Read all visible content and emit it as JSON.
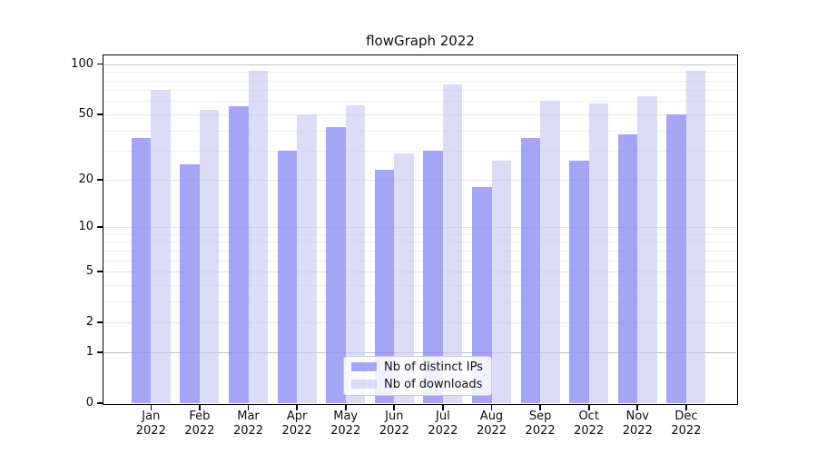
{
  "title": "flowGraph 2022",
  "chart_data": {
    "type": "bar",
    "title": "flowGraph 2022",
    "categories": [
      "Jan 2022",
      "Feb 2022",
      "Mar 2022",
      "Apr 2022",
      "May 2022",
      "Jun 2022",
      "Jul 2022",
      "Aug 2022",
      "Sep 2022",
      "Oct 2022",
      "Nov 2022",
      "Dec 2022"
    ],
    "series": [
      {
        "name": "Nb of distinct IPs",
        "color": "#8f8ff4",
        "alpha": 0.8,
        "values": [
          36,
          25,
          56,
          30,
          42,
          23,
          30,
          18,
          36,
          26,
          38,
          50
        ]
      },
      {
        "name": "Nb of downloads",
        "color": "#c6c6f2",
        "alpha": 0.62,
        "values": [
          70,
          53,
          91,
          50,
          57,
          29,
          76,
          26,
          60,
          58,
          64,
          91
        ]
      }
    ],
    "yscale": "symlog",
    "ylim": [
      0,
      112
    ],
    "y_major_ticks": [
      0,
      1,
      2,
      5,
      10,
      20,
      50,
      100
    ],
    "y_minor_ticks": [
      3,
      4,
      6,
      7,
      8,
      9,
      30,
      40,
      60,
      70,
      80,
      90
    ],
    "emphasized_gridlines": [
      1,
      100
    ],
    "grid": "on",
    "legend_position": "lower center"
  },
  "colors": {
    "grid_minor": "#f0f0f0",
    "grid_major": "#e6e6e6",
    "grid_emphasized": "#c3c3c3",
    "axis": "#000000",
    "text": "#0d0d0d"
  }
}
